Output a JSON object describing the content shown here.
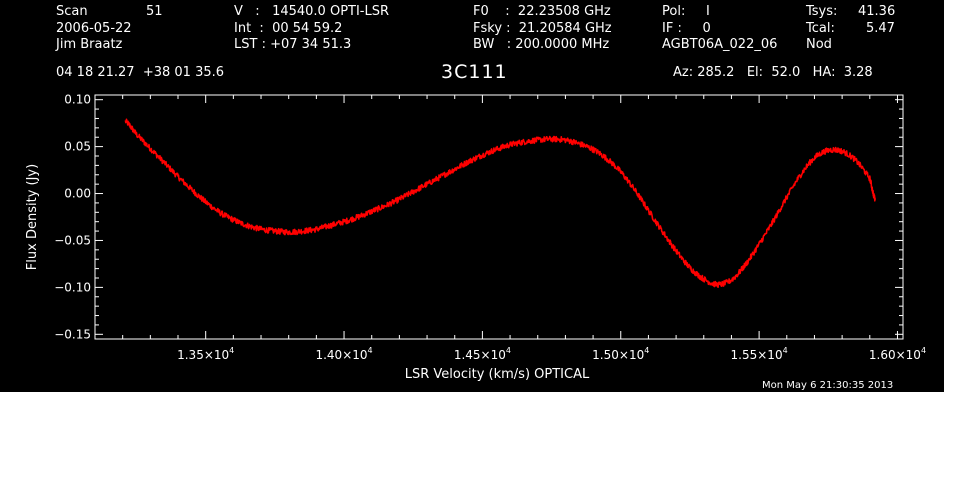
{
  "header": {
    "col1": {
      "scan_label": "Scan",
      "scan_value": "51",
      "date": "2006-05-22",
      "observer": "Jim Braatz",
      "coords": "04 18 21.27  +38 01 35.6"
    },
    "col2": {
      "v": "V   :   14540.0 OPTI-LSR",
      "int": "Int  :  00 54 59.2",
      "lst": "LST : +07 34 51.3"
    },
    "col3": {
      "f0": "F0    :  22.23508 GHz",
      "fsky": "Fsky :  21.20584 GHz",
      "bw": "BW   : 200.0000 MHz"
    },
    "col4": {
      "pol": "Pol:     I",
      "if": "IF :     0",
      "project": "AGBT06A_022_06"
    },
    "col5": {
      "tsys_label": "Tsys:",
      "tsys_value": "41.36",
      "tcal_label": "Tcal:",
      "tcal_value": "5.47",
      "mode": "Nod"
    },
    "source": "3C111",
    "pointing": "Az: 285.2   El:  52.0   HA:  3.28",
    "timestamp": "Mon May  6 21:30:35 2013"
  },
  "colors": {
    "background": "#000000",
    "axes": "#ffffff",
    "trace": "#ff0000"
  },
  "chart_data": {
    "type": "line",
    "title": "3C111",
    "xlabel": "LSR Velocity (km/s) OPTICAL",
    "ylabel": "Flux Density (Jy)",
    "xlim": [
      13100,
      16020
    ],
    "ylim": [
      -0.155,
      0.105
    ],
    "x_ticks": [
      {
        "value": 13500,
        "mant": "1.35×10",
        "exp": "4"
      },
      {
        "value": 14000,
        "mant": "1.40×10",
        "exp": "4"
      },
      {
        "value": 14500,
        "mant": "1.45×10",
        "exp": "4"
      },
      {
        "value": 15000,
        "mant": "1.50×10",
        "exp": "4"
      },
      {
        "value": 15500,
        "mant": "1.55×10",
        "exp": "4"
      },
      {
        "value": 16000,
        "mant": "1.60×10",
        "exp": "4"
      }
    ],
    "y_ticks": [
      {
        "value": 0.1,
        "label": "0.10"
      },
      {
        "value": 0.05,
        "label": "0.05"
      },
      {
        "value": 0.0,
        "label": "0.00"
      },
      {
        "value": -0.05,
        "label": "−0.05"
      },
      {
        "value": -0.1,
        "label": "−0.10"
      },
      {
        "value": -0.15,
        "label": "−0.15"
      }
    ],
    "series": [
      {
        "x": [
          13210,
          13250,
          13300,
          13350,
          13400,
          13450,
          13500,
          13550,
          13600,
          13650,
          13700,
          13750,
          13800,
          13850,
          13900,
          13950,
          14000,
          14050,
          14100,
          14150,
          14200,
          14250,
          14300,
          14350,
          14400,
          14450,
          14500,
          14550,
          14600,
          14650,
          14700,
          14750,
          14800,
          14850,
          14900,
          14950,
          15000,
          15050,
          15100,
          15150,
          15200,
          15250,
          15300,
          15350,
          15400,
          15450,
          15500,
          15550,
          15600,
          15650,
          15700,
          15750,
          15800,
          15850,
          15900,
          15920
        ],
        "y": [
          0.077,
          0.063,
          0.048,
          0.033,
          0.018,
          0.004,
          -0.009,
          -0.02,
          -0.028,
          -0.034,
          -0.038,
          -0.04,
          -0.041,
          -0.04,
          -0.038,
          -0.034,
          -0.03,
          -0.025,
          -0.019,
          -0.013,
          -0.006,
          0.002,
          0.01,
          0.018,
          0.026,
          0.034,
          0.041,
          0.047,
          0.052,
          0.055,
          0.057,
          0.058,
          0.057,
          0.053,
          0.047,
          0.037,
          0.023,
          0.004,
          -0.018,
          -0.04,
          -0.061,
          -0.079,
          -0.091,
          -0.097,
          -0.092,
          -0.076,
          -0.054,
          -0.03,
          -0.004,
          0.02,
          0.038,
          0.046,
          0.045,
          0.035,
          0.016,
          -0.007
        ]
      }
    ],
    "grid": false,
    "legend": "none"
  }
}
